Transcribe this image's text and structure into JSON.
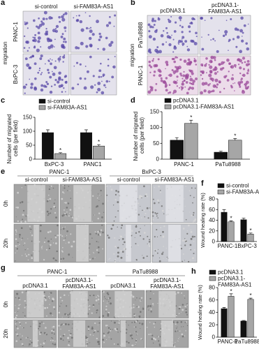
{
  "figure": {
    "panels": [
      {
        "letter": "a",
        "columns": [
          "si-control",
          "si-FAM83A-AS1"
        ],
        "rows": [
          "PANC-1",
          "BxPC-3"
        ],
        "row_title": "migration"
      },
      {
        "letter": "b",
        "columns": [
          "pcDNA3.1",
          "pcDNA3.1-FAM83A-AS1"
        ],
        "rows": [
          "PaTu8988",
          "PANC-1"
        ],
        "row_title": "migration"
      },
      {
        "letter": "e",
        "groups": [
          "PANC-1",
          "BxPC-3"
        ],
        "columns": [
          "si-control",
          "si-FAM83A-AS1",
          "si-control",
          "si-FAM83A-AS1"
        ],
        "rows": [
          "0h",
          "20h"
        ]
      },
      {
        "letter": "g",
        "groups": [
          "PANC-1",
          "PaTu8988"
        ],
        "columns": [
          "pcDNA3.1",
          "pcDNA3.1-FAM83A-AS1",
          "pcDNA3.1",
          "pcDNA3.1-FAM83A-AS1"
        ],
        "rows": [
          "0h",
          "20h"
        ]
      }
    ]
  },
  "chart_data": [
    {
      "type": "bar",
      "letter": "c",
      "y_label": "Number of migrated cells (per field)",
      "categories": [
        "BxPC-3",
        "PANC1"
      ],
      "series": [
        {
          "name": "si-control",
          "color": "#111111",
          "values": [
            95,
            95
          ],
          "errors": [
            10,
            10
          ]
        },
        {
          "name": "si-FAM83A-AS1",
          "color": "#a6a6a6",
          "values": [
            20,
            47
          ],
          "errors": [
            3,
            5
          ],
          "annotations": [
            "*",
            "*"
          ]
        }
      ],
      "ylim": [
        0,
        150
      ],
      "yticks": [
        0,
        50,
        100,
        150
      ]
    },
    {
      "type": "bar",
      "letter": "d",
      "y_label": "Number of migrated cells (per field)",
      "categories": [
        "PANC-1",
        "PaTu8988"
      ],
      "series": [
        {
          "name": "pcDNA3.1",
          "color": "#111111",
          "values": [
            60,
            22
          ],
          "errors": [
            8,
            3
          ]
        },
        {
          "name": "pcDNA3.1-FAM83A-AS1",
          "color": "#a6a6a6",
          "values": [
            113,
            60
          ],
          "errors": [
            10,
            5
          ],
          "annotations": [
            "*",
            "*"
          ]
        }
      ],
      "ylim": [
        0,
        150
      ],
      "yticks": [
        0,
        50,
        100,
        150
      ]
    },
    {
      "type": "bar",
      "letter": "f",
      "y_label": "Wound healing rate (%)",
      "categories": [
        "PANC-1",
        "BxPC-3"
      ],
      "series": [
        {
          "name": "si-control",
          "color": "#111111",
          "values": [
            55,
            41
          ],
          "errors": [
            5,
            3
          ]
        },
        {
          "name": "si-FAM83A-AS1",
          "color": "#a6a6a6",
          "values": [
            37,
            14
          ],
          "errors": [
            2,
            2
          ],
          "annotations": [
            "*",
            "*"
          ]
        }
      ],
      "ylim": [
        0,
        80
      ],
      "yticks": [
        0,
        20,
        40,
        60,
        80
      ]
    },
    {
      "type": "bar",
      "letter": "h",
      "y_label": "Wound healing rate (%)",
      "categories": [
        "PANC-1",
        "PaTu8988"
      ],
      "series": [
        {
          "name": "pcDNA3.1",
          "color": "#111111",
          "values": [
            46,
            26
          ],
          "errors": [
            2,
            1
          ]
        },
        {
          "name": "pcDNA3.1-FAM83A-AS1",
          "color": "#a6a6a6",
          "values": [
            66,
            61
          ],
          "errors": [
            4,
            2
          ],
          "annotations": [
            "*",
            "*"
          ]
        }
      ],
      "ylim": [
        0,
        80
      ],
      "yticks": [
        0,
        20,
        40,
        60,
        80
      ]
    }
  ]
}
